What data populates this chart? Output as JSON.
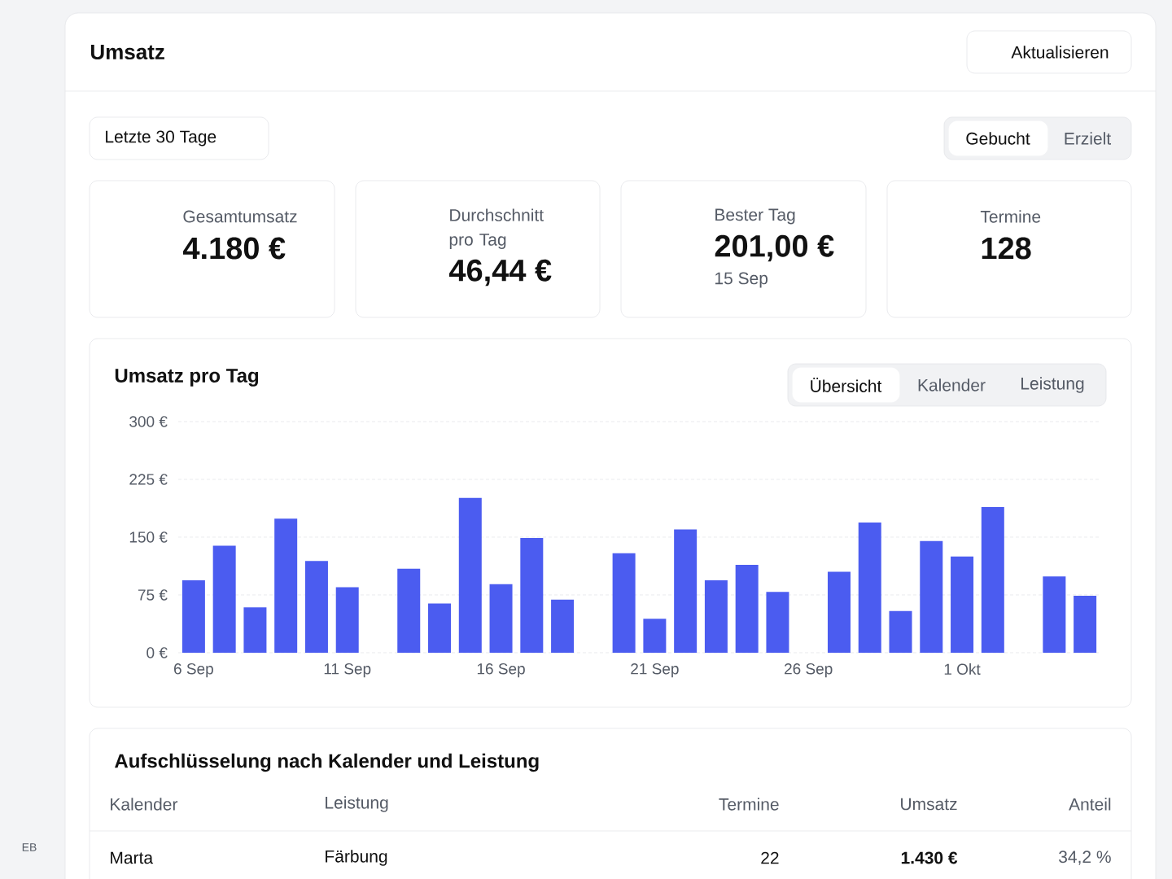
{
  "chart_data": [
    {
      "type": "other",
      "title": "Umsatz",
      "annotations": [
        "Aktualisieren",
        "Letzte 30 Tage",
        "Gebucht",
        "Erzielt",
        "Gesamtumsatz",
        "4.180 €",
        "Durchschnitt pro Tag",
        "46,44 €",
        "Bester Tag",
        "201,00 €",
        "15 Sep",
        "Termine",
        "128",
        "EB"
      ]
    },
    {
      "type": "bar",
      "title": "Umsatz pro Tag",
      "annotations": [
        "Übersicht",
        "Kalender",
        "Leistung"
      ],
      "categories": [
        "6 Sep",
        null,
        null,
        null,
        null,
        "11 Sep",
        null,
        null,
        null,
        null,
        "16 Sep",
        null,
        null,
        null,
        null,
        "21 Sep",
        null,
        null,
        null,
        null,
        "26 Sep",
        null,
        null,
        null,
        null,
        "1 Okt",
        null,
        null,
        null,
        null
      ],
      "values": [
        94,
        139,
        59,
        174,
        119,
        85,
        0,
        109,
        64,
        201,
        89,
        149,
        69,
        0,
        129,
        44,
        160,
        94,
        114,
        79,
        0,
        105,
        169,
        54,
        145,
        125,
        189,
        0,
        99,
        74
      ],
      "color": "#4b5cf0",
      "ylim": [
        0,
        300
      ],
      "yticks": [
        {
          "value": 0,
          "label": "0 €"
        },
        {
          "value": 75,
          "label": "75 €"
        },
        {
          "value": 150,
          "label": "150 €"
        },
        {
          "value": 225,
          "label": "225 €"
        },
        {
          "value": 300,
          "label": "300 €"
        }
      ],
      "grid": "y"
    },
    {
      "type": "other",
      "title": "Aufschlüsselung nach Kalender und Leistung",
      "annotations": [
        "Kalender",
        "Leistung",
        "Termine",
        "Umsatz",
        "Anteil",
        "Marta",
        "Färbung",
        "22",
        "1.430 €",
        "34,2 %"
      ]
    }
  ]
}
